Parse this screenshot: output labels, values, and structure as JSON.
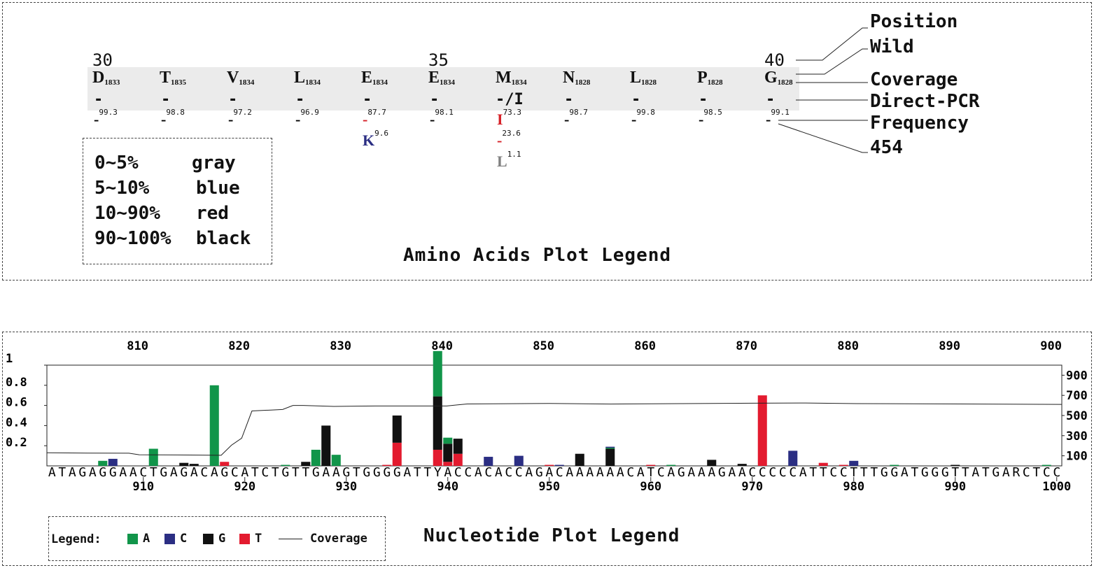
{
  "amino": {
    "position_ticks": [
      {
        "label": "30",
        "col": 0
      },
      {
        "label": "35",
        "col": 5
      },
      {
        "label": "40",
        "col": 10
      }
    ],
    "residues": [
      {
        "aa": "D",
        "cov": "1833",
        "direct": "-",
        "freqs": [
          {
            "mark": "-",
            "val": "99.3",
            "color": "#000000"
          }
        ]
      },
      {
        "aa": "T",
        "cov": "1835",
        "direct": "-",
        "freqs": [
          {
            "mark": "-",
            "val": "98.8",
            "color": "#000000"
          }
        ]
      },
      {
        "aa": "V",
        "cov": "1834",
        "direct": "-",
        "freqs": [
          {
            "mark": "-",
            "val": "97.2",
            "color": "#000000"
          }
        ]
      },
      {
        "aa": "L",
        "cov": "1834",
        "direct": "-",
        "freqs": [
          {
            "mark": "-",
            "val": "96.9",
            "color": "#000000"
          }
        ]
      },
      {
        "aa": "E",
        "cov": "1834",
        "direct": "-",
        "freqs": [
          {
            "mark": "-",
            "val": "87.7",
            "color": "#d62027"
          },
          {
            "mark": "K",
            "val": "9.6",
            "color": "#2b2e83"
          }
        ]
      },
      {
        "aa": "E",
        "cov": "1834",
        "direct": "-",
        "freqs": [
          {
            "mark": "-",
            "val": "98.1",
            "color": "#000000"
          }
        ]
      },
      {
        "aa": "M",
        "cov": "1834",
        "direct": "-/I",
        "freqs": [
          {
            "mark": "I",
            "val": "73.3",
            "color": "#d62027"
          },
          {
            "mark": "-",
            "val": "23.6",
            "color": "#d62027"
          },
          {
            "mark": "L",
            "val": "1.1",
            "color": "#808080"
          }
        ]
      },
      {
        "aa": "N",
        "cov": "1828",
        "direct": "-",
        "freqs": [
          {
            "mark": "-",
            "val": "98.7",
            "color": "#000000"
          }
        ]
      },
      {
        "aa": "L",
        "cov": "1828",
        "direct": "-",
        "freqs": [
          {
            "mark": "-",
            "val": "99.8",
            "color": "#000000"
          }
        ]
      },
      {
        "aa": "P",
        "cov": "1828",
        "direct": "-",
        "freqs": [
          {
            "mark": "-",
            "val": "98.5",
            "color": "#000000"
          }
        ]
      },
      {
        "aa": "G",
        "cov": "1828",
        "direct": "-",
        "freqs": [
          {
            "mark": "-",
            "val": "99.1",
            "color": "#000000"
          }
        ]
      }
    ],
    "row_labels": [
      "Position",
      "Wild",
      "Coverage",
      "Direct-PCR",
      "Frequency",
      "454"
    ],
    "color_legend": [
      {
        "range": "0~5%",
        "color": "gray"
      },
      {
        "range": "5~10%",
        "color": "blue"
      },
      {
        "range": "10~90%",
        "color": "red"
      },
      {
        "range": "90~100%",
        "color": "black"
      }
    ],
    "title": "Amino Acids Plot Legend"
  },
  "nucleotide": {
    "title": "Nucleotide Plot Legend",
    "legend_label": "Legend:",
    "legend_items": [
      {
        "name": "A",
        "color": "#11954a"
      },
      {
        "name": "C",
        "color": "#2b2e83"
      },
      {
        "name": "G",
        "color": "#111111"
      },
      {
        "name": "T",
        "color": "#e31b2f"
      }
    ],
    "coverage_label": "Coverage",
    "top_ticks": [
      "810",
      "820",
      "830",
      "840",
      "850",
      "860",
      "870",
      "880",
      "890",
      "900"
    ],
    "bottom_ticks": [
      "910",
      "920",
      "930",
      "940",
      "950",
      "960",
      "970",
      "980",
      "990",
      "1000"
    ],
    "left_ticks": [
      "1",
      "0.8",
      "0.6",
      "0.4",
      "0.2"
    ],
    "right_ticks": [
      "900",
      "700",
      "500",
      "300",
      "100"
    ],
    "sequence": "ATAGAGGAACTGAGACAGCATCTGTTGAAGTGGGGATTYACCACACCAGACAAAAAACATCAGAAAGAACCCCCATTCCTTTGGATGGGTTATGARCTCC"
  },
  "chart_data": {
    "type": "bar",
    "x_start": 901,
    "x_end": 1000,
    "ylim": [
      0,
      1
    ],
    "y2lim": [
      0,
      1000
    ],
    "stacked": true,
    "series": [
      {
        "name": "A",
        "values": [
          [
            906,
            0.05
          ],
          [
            911,
            0.17
          ],
          [
            917,
            0.8
          ],
          [
            924,
            0.01
          ],
          [
            927,
            0.16
          ],
          [
            929,
            0.11
          ],
          [
            939,
            0.45
          ],
          [
            940,
            0.06
          ],
          [
            956,
            0.01
          ],
          [
            962,
            0.01
          ],
          [
            984,
            0.01
          ],
          [
            999,
            0.01
          ]
        ]
      },
      {
        "name": "C",
        "values": [
          [
            907,
            0.07
          ],
          [
            944,
            0.09
          ],
          [
            947,
            0.1
          ],
          [
            951,
            0.01
          ],
          [
            956,
            0.01
          ],
          [
            974,
            0.15
          ],
          [
            980,
            0.05
          ]
        ]
      },
      {
        "name": "G",
        "values": [
          [
            914,
            0.03
          ],
          [
            915,
            0.02
          ],
          [
            926,
            0.04
          ],
          [
            928,
            0.4
          ],
          [
            935,
            0.27
          ],
          [
            939,
            0.53
          ],
          [
            940,
            0.18
          ],
          [
            941,
            0.15
          ],
          [
            953,
            0.12
          ],
          [
            956,
            0.17
          ],
          [
            966,
            0.06
          ],
          [
            969,
            0.02
          ],
          [
            990,
            0.01
          ]
        ]
      },
      {
        "name": "T",
        "values": [
          [
            918,
            0.04
          ],
          [
            934,
            0.01
          ],
          [
            935,
            0.23
          ],
          [
            939,
            0.16
          ],
          [
            940,
            0.04
          ],
          [
            941,
            0.12
          ],
          [
            950,
            0.01
          ],
          [
            960,
            0.01
          ],
          [
            971,
            0.7
          ],
          [
            977,
            0.03
          ],
          [
            979,
            0.01
          ]
        ]
      }
    ],
    "coverage": [
      [
        901,
        130
      ],
      [
        905,
        127
      ],
      [
        909,
        126
      ],
      [
        910,
        110
      ],
      [
        915,
        108
      ],
      [
        918,
        105
      ],
      [
        919,
        205
      ],
      [
        920,
        275
      ],
      [
        921,
        545
      ],
      [
        923,
        555
      ],
      [
        924,
        560
      ],
      [
        925,
        600
      ],
      [
        926,
        600
      ],
      [
        929,
        590
      ],
      [
        933,
        595
      ],
      [
        936,
        595
      ],
      [
        940,
        595
      ],
      [
        941,
        605
      ],
      [
        942,
        615
      ],
      [
        950,
        620
      ],
      [
        956,
        614
      ],
      [
        960,
        616
      ],
      [
        970,
        622
      ],
      [
        975,
        624
      ],
      [
        980,
        618
      ],
      [
        990,
        615
      ],
      [
        1000,
        610
      ]
    ]
  }
}
